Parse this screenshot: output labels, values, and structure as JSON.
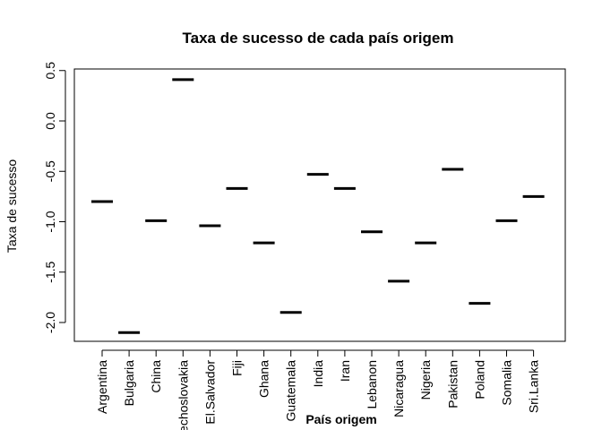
{
  "chart_data": {
    "type": "boxplot",
    "title": "Taxa de sucesso de cada país origem",
    "xlabel": "País origem",
    "ylabel": "Taxa de sucesso",
    "ylim": [
      -2.2,
      0.55
    ],
    "yticks": [
      0.5,
      0.0,
      -0.5,
      -1.0,
      -1.5,
      -2.0
    ],
    "ytick_labels": [
      "0.5",
      "0.0",
      "-0.5",
      "-1.0",
      "-1.5",
      "-2.0"
    ],
    "grid": false,
    "categories": [
      "Argentina",
      "Bulgaria",
      "China",
      "Czechoslovakia",
      "El.Salvador",
      "Fiji",
      "Ghana",
      "Guatemala",
      "India",
      "Iran",
      "Lebanon",
      "Nicaragua",
      "Nigeria",
      "Pakistan",
      "Poland",
      "Somalia",
      "Sri.Lanka"
    ],
    "values": [
      -0.8,
      -2.1,
      -0.99,
      0.41,
      -1.04,
      -0.67,
      -1.21,
      -1.9,
      -0.53,
      -0.67,
      -1.1,
      -1.59,
      -1.21,
      -0.48,
      -1.81,
      -0.99,
      -0.75
    ]
  }
}
